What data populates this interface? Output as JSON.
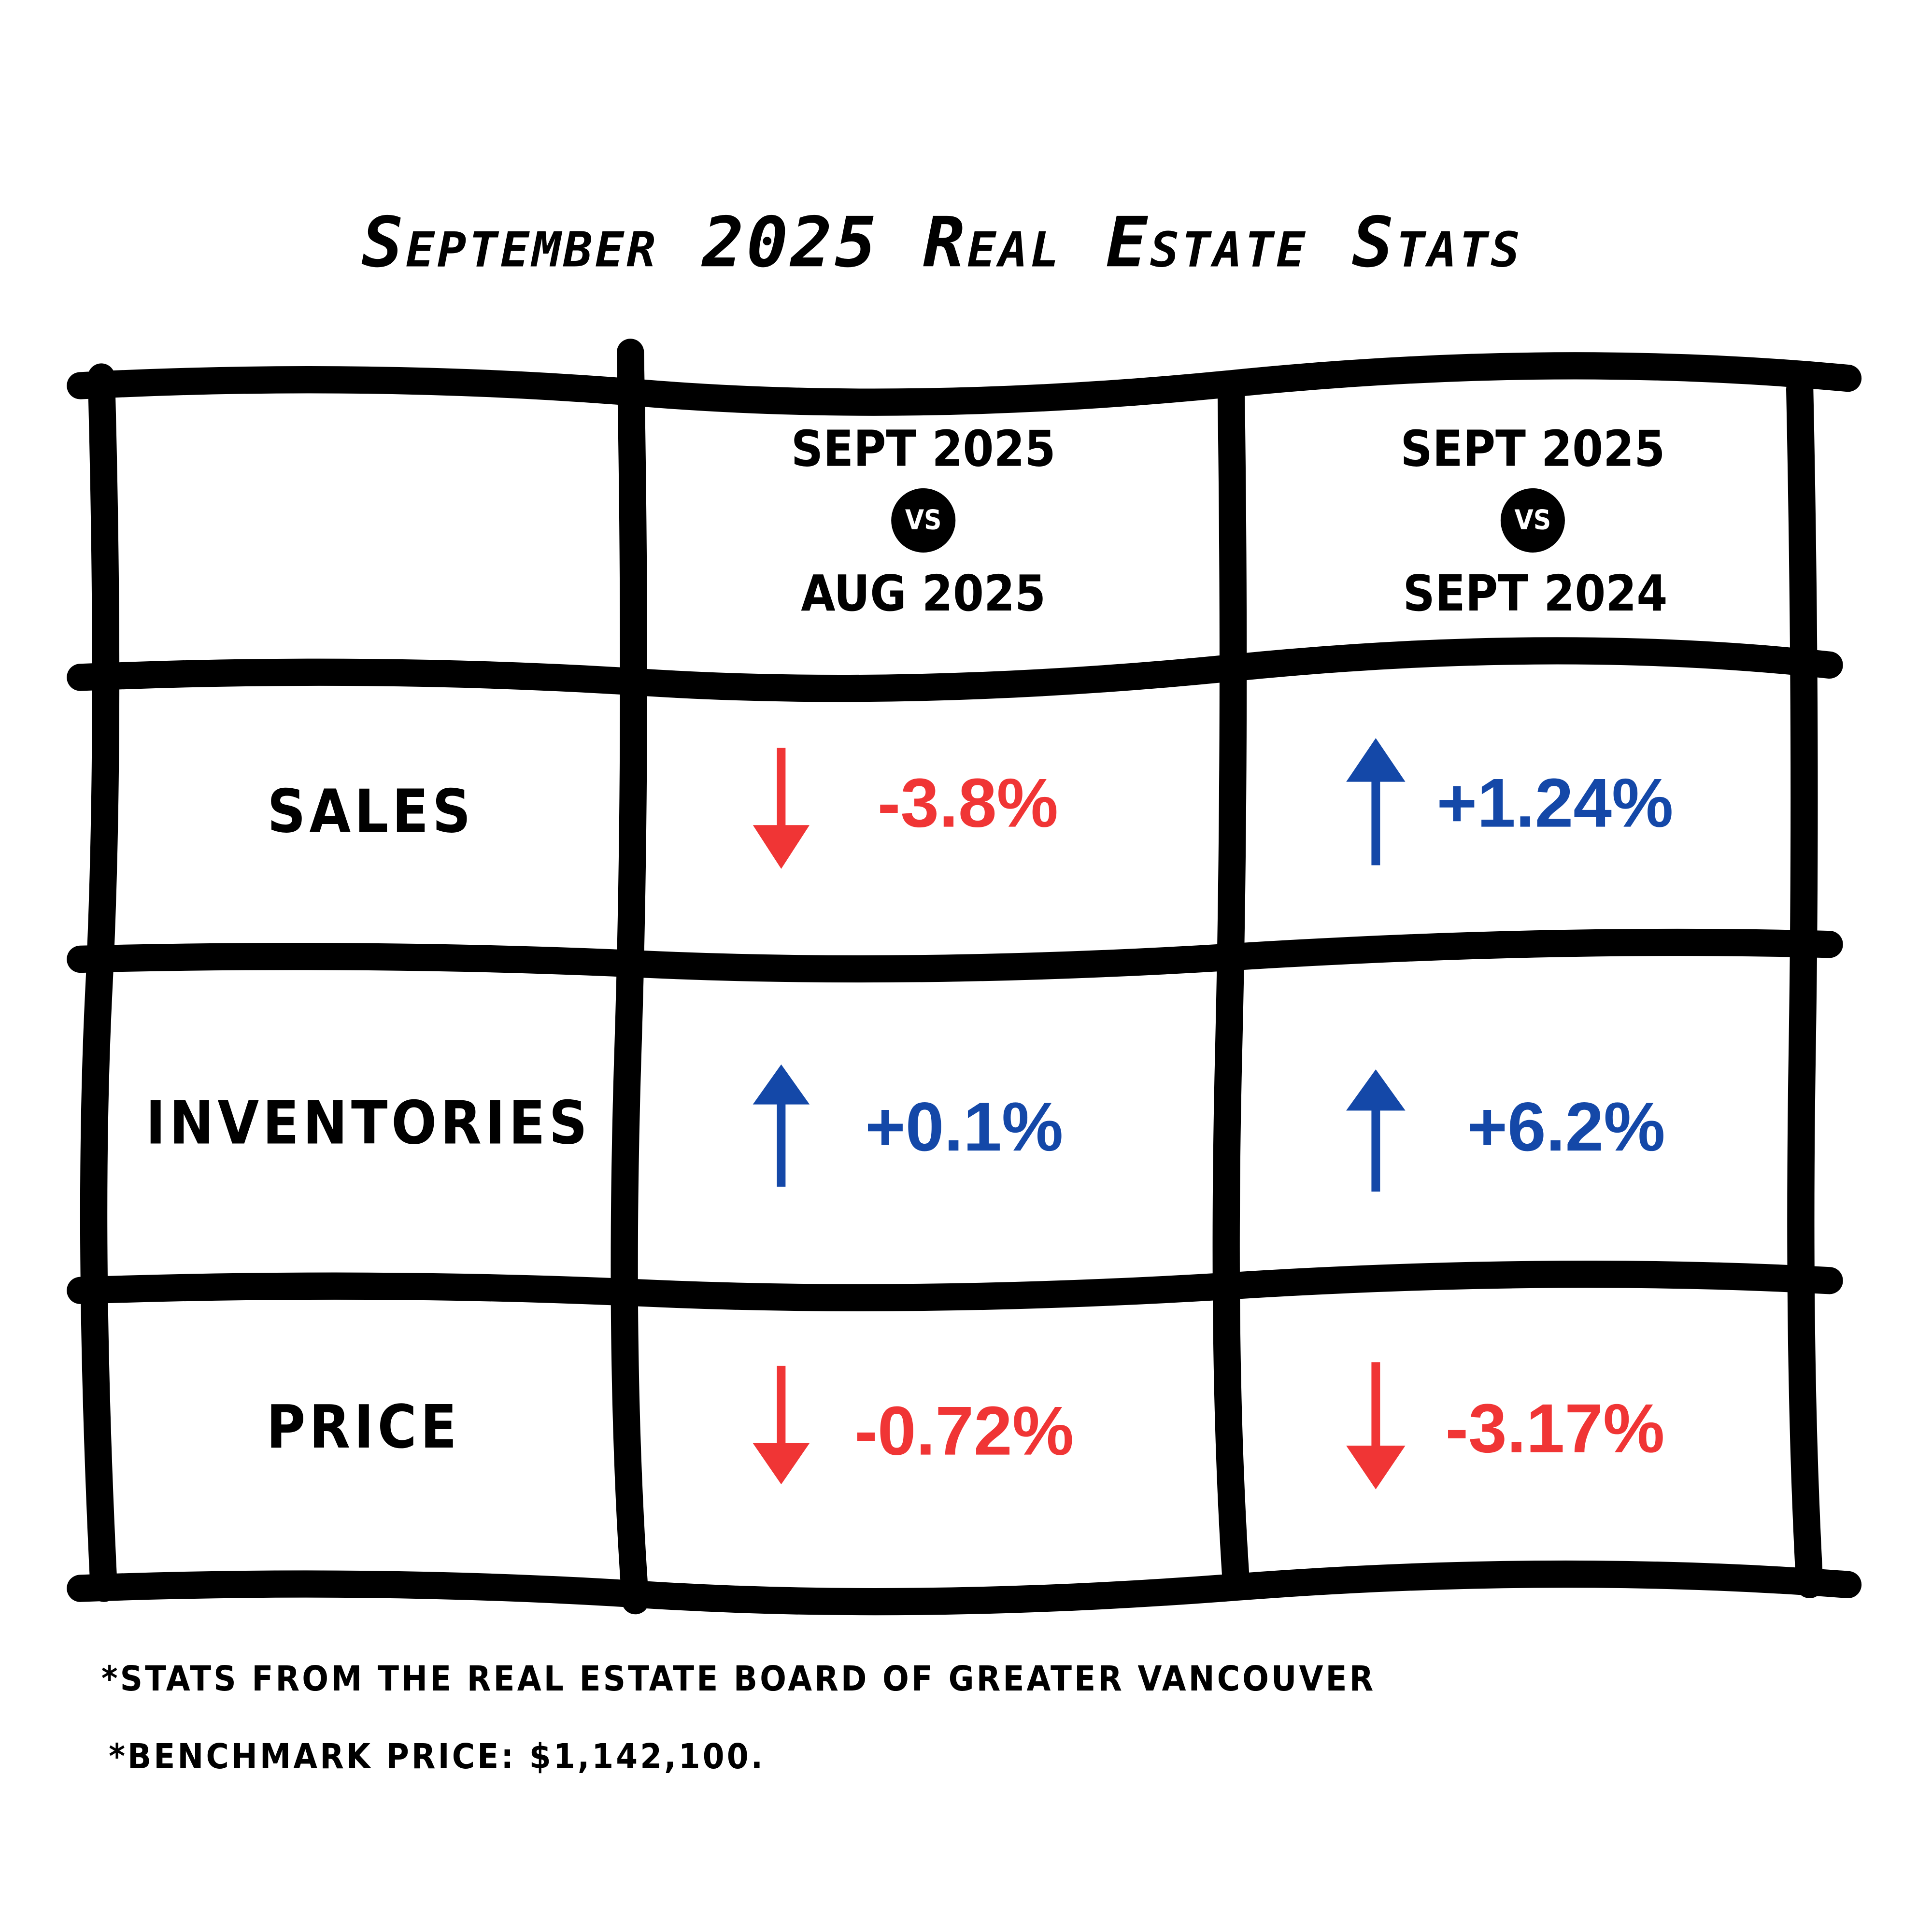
{
  "title": "September 2025 Real Estate Stats",
  "table": {
    "columns": [
      {
        "top": "SEPT 2025",
        "vs": "VS",
        "bottom": "AUG 2025"
      },
      {
        "top": "SEPT 2025",
        "vs": "VS",
        "bottom": "SEPT 2024"
      }
    ],
    "rows": [
      {
        "label": "SALES",
        "cells": [
          "-3.8%",
          "+1.24%"
        ]
      },
      {
        "label": "INVENTORIES",
        "cells": [
          "+0.1%",
          "+6.2%"
        ]
      },
      {
        "label": "PRICE",
        "cells": [
          "-0.72%",
          "-3.17%"
        ]
      }
    ]
  },
  "footnotes": [
    "*STATS FROM THE REAL ESTATE BOARD OF GREATER VANCOUVER",
    "*BENCHMARK PRICE: $1,142,100."
  ]
}
